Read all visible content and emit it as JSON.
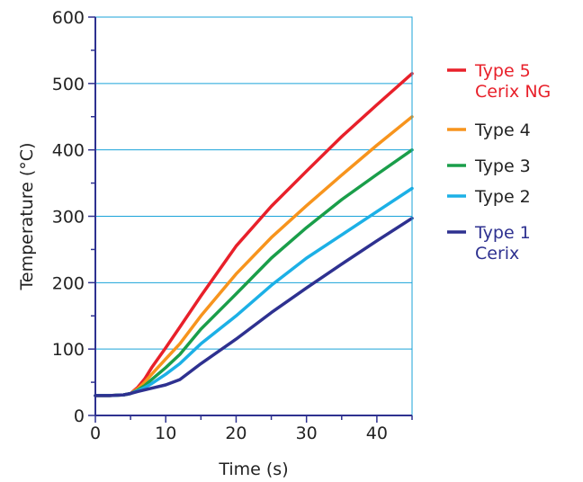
{
  "chart_data": {
    "type": "line",
    "title": "",
    "xlabel": "Time (s)",
    "ylabel": "Temperature (°C)",
    "xlim": [
      0,
      45
    ],
    "ylim": [
      0,
      600
    ],
    "x_ticks": [
      0,
      10,
      20,
      30,
      40
    ],
    "y_ticks": [
      0,
      100,
      200,
      300,
      400,
      500,
      600
    ],
    "grid": "horizontal",
    "legend_position": "right",
    "series": [
      {
        "name_lines": [
          "Type 5",
          "Cerix NG"
        ],
        "color": "#e8202a",
        "points": [
          [
            0,
            30
          ],
          [
            2,
            30
          ],
          [
            4,
            31
          ],
          [
            5,
            33
          ],
          [
            6,
            42
          ],
          [
            7,
            55
          ],
          [
            8,
            72
          ],
          [
            10,
            102
          ],
          [
            12,
            133
          ],
          [
            15,
            180
          ],
          [
            20,
            255
          ],
          [
            25,
            315
          ],
          [
            30,
            368
          ],
          [
            35,
            420
          ],
          [
            40,
            468
          ],
          [
            45,
            515
          ]
        ]
      },
      {
        "name_lines": [
          "Type 4"
        ],
        "color": "#f7941d",
        "points": [
          [
            0,
            30
          ],
          [
            2,
            30
          ],
          [
            4,
            31
          ],
          [
            5,
            33
          ],
          [
            6,
            40
          ],
          [
            7,
            50
          ],
          [
            8,
            62
          ],
          [
            10,
            85
          ],
          [
            12,
            108
          ],
          [
            15,
            150
          ],
          [
            20,
            213
          ],
          [
            25,
            268
          ],
          [
            30,
            316
          ],
          [
            35,
            362
          ],
          [
            40,
            407
          ],
          [
            45,
            450
          ]
        ]
      },
      {
        "name_lines": [
          "Type 3"
        ],
        "color": "#1a9e4a",
        "points": [
          [
            0,
            30
          ],
          [
            2,
            30
          ],
          [
            4,
            31
          ],
          [
            5,
            33
          ],
          [
            6,
            38
          ],
          [
            7,
            45
          ],
          [
            8,
            54
          ],
          [
            10,
            72
          ],
          [
            12,
            92
          ],
          [
            15,
            130
          ],
          [
            20,
            183
          ],
          [
            25,
            237
          ],
          [
            30,
            283
          ],
          [
            35,
            325
          ],
          [
            40,
            363
          ],
          [
            45,
            400
          ]
        ]
      },
      {
        "name_lines": [
          "Type 2"
        ],
        "color": "#1cb0e6",
        "points": [
          [
            0,
            30
          ],
          [
            2,
            30
          ],
          [
            4,
            31
          ],
          [
            5,
            33
          ],
          [
            6,
            37
          ],
          [
            7,
            42
          ],
          [
            8,
            48
          ],
          [
            10,
            62
          ],
          [
            12,
            78
          ],
          [
            15,
            108
          ],
          [
            20,
            150
          ],
          [
            25,
            196
          ],
          [
            30,
            237
          ],
          [
            35,
            272
          ],
          [
            40,
            307
          ],
          [
            45,
            342
          ]
        ]
      },
      {
        "name_lines": [
          "Type 1",
          "Cerix"
        ],
        "color": "#2e3190",
        "points": [
          [
            0,
            30
          ],
          [
            2,
            30
          ],
          [
            4,
            31
          ],
          [
            5,
            33
          ],
          [
            6,
            36
          ],
          [
            8,
            41
          ],
          [
            10,
            46
          ],
          [
            12,
            54
          ],
          [
            15,
            78
          ],
          [
            20,
            115
          ],
          [
            25,
            155
          ],
          [
            30,
            192
          ],
          [
            35,
            228
          ],
          [
            40,
            263
          ],
          [
            45,
            297
          ]
        ]
      }
    ]
  },
  "colors": {
    "axis": "#1aa3d9",
    "grid": "#1aa3d9",
    "text": "#222222"
  }
}
